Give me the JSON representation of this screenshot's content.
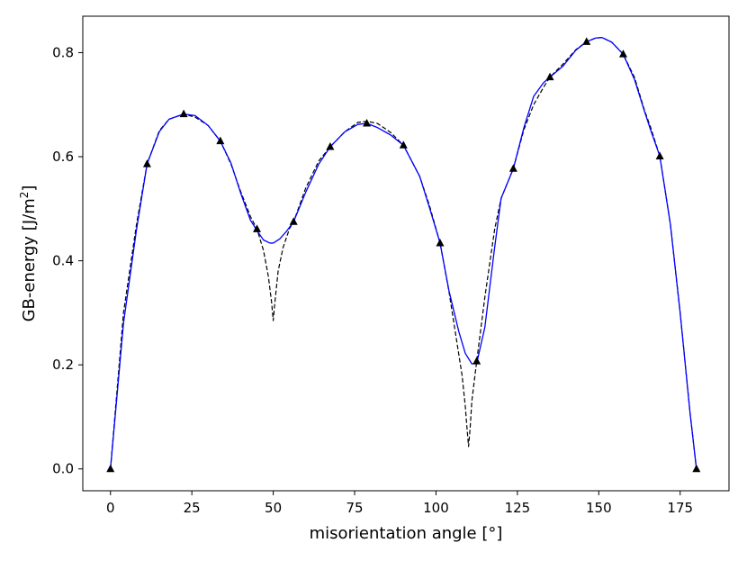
{
  "chart_data": {
    "type": "line",
    "title": "",
    "xlabel": "misorientation angle [°]",
    "ylabel_main": "GB-energy [J/m",
    "ylabel_sup": "2",
    "ylabel_end": "]",
    "xlim": [
      -8.5,
      190
    ],
    "ylim": [
      -0.042,
      0.87
    ],
    "xticks": [
      0,
      25,
      50,
      75,
      100,
      125,
      150,
      175
    ],
    "yticks": [
      0.0,
      0.2,
      0.4,
      0.6,
      0.8
    ],
    "xtick_labels": [
      "0",
      "25",
      "50",
      "75",
      "100",
      "125",
      "150",
      "175"
    ],
    "ytick_labels": [
      "0.0",
      "0.2",
      "0.4",
      "0.6",
      "0.8"
    ],
    "grid": false,
    "legend": "none",
    "series": [
      {
        "style": "markers",
        "marker": "triangle",
        "color": "#000000",
        "x": [
          0,
          11.25,
          22.5,
          33.75,
          45,
          56.25,
          67.5,
          78.75,
          90,
          101.25,
          112.5,
          123.75,
          135,
          146.25,
          157.5,
          168.75,
          180
        ],
        "y": [
          0.0,
          0.586,
          0.682,
          0.63,
          0.461,
          0.475,
          0.619,
          0.664,
          0.622,
          0.434,
          0.207,
          0.577,
          0.753,
          0.821,
          0.797,
          0.601,
          0.0
        ]
      },
      {
        "style": "solid",
        "color": "#0000ff",
        "x": [
          0,
          4,
          8,
          11.25,
          15,
          18,
          22.5,
          26,
          30,
          33.75,
          37,
          40,
          43,
          45,
          47,
          49,
          50,
          52,
          54,
          56.25,
          60,
          64,
          67.5,
          72,
          76,
          78.75,
          82,
          86,
          90,
          95,
          98,
          101.25,
          104,
          107,
          109,
          111,
          112.5,
          115,
          118,
          120,
          123.75,
          127,
          130,
          133,
          135,
          139,
          143,
          146.25,
          149,
          151,
          154,
          157.5,
          161,
          164,
          166,
          168.75,
          172,
          175,
          178,
          180
        ],
        "y": [
          0.0,
          0.28,
          0.46,
          0.586,
          0.648,
          0.672,
          0.682,
          0.679,
          0.66,
          0.63,
          0.588,
          0.53,
          0.478,
          0.458,
          0.44,
          0.434,
          0.434,
          0.442,
          0.456,
          0.475,
          0.532,
          0.586,
          0.619,
          0.648,
          0.662,
          0.664,
          0.656,
          0.642,
          0.622,
          0.562,
          0.502,
          0.434,
          0.342,
          0.264,
          0.222,
          0.202,
          0.203,
          0.272,
          0.425,
          0.52,
          0.577,
          0.656,
          0.716,
          0.742,
          0.753,
          0.774,
          0.805,
          0.821,
          0.828,
          0.829,
          0.82,
          0.797,
          0.748,
          0.688,
          0.65,
          0.601,
          0.47,
          0.3,
          0.11,
          0.0
        ]
      },
      {
        "style": "dashed",
        "color": "#000000",
        "x": [
          0,
          4,
          8,
          11.25,
          15,
          18,
          22.5,
          26,
          30,
          33.75,
          37,
          40,
          43,
          45,
          47,
          48.5,
          49.5,
          50,
          50.5,
          51.5,
          53,
          55,
          56.25,
          60,
          64,
          67.5,
          72,
          76,
          78.75,
          82,
          86,
          90,
          95,
          98,
          101.25,
          104,
          106,
          108,
          109,
          109.5,
          110,
          110.5,
          111,
          112.5,
          115,
          118,
          120,
          123.75,
          127,
          130,
          133,
          135,
          139,
          143,
          146.25,
          149,
          151,
          154,
          157.5,
          161,
          164,
          166,
          168.75,
          172,
          175,
          178,
          180
        ],
        "y": [
          0.0,
          0.3,
          0.47,
          0.586,
          0.65,
          0.672,
          0.682,
          0.676,
          0.66,
          0.63,
          0.586,
          0.533,
          0.485,
          0.461,
          0.42,
          0.37,
          0.32,
          0.285,
          0.32,
          0.38,
          0.425,
          0.462,
          0.475,
          0.54,
          0.592,
          0.619,
          0.648,
          0.666,
          0.668,
          0.664,
          0.647,
          0.622,
          0.562,
          0.506,
          0.434,
          0.34,
          0.26,
          0.18,
          0.12,
          0.08,
          0.043,
          0.08,
          0.13,
          0.207,
          0.33,
          0.46,
          0.52,
          0.577,
          0.652,
          0.7,
          0.733,
          0.753,
          0.778,
          0.806,
          0.821,
          0.828,
          0.829,
          0.82,
          0.797,
          0.752,
          0.69,
          0.655,
          0.601,
          0.47,
          0.3,
          0.11,
          0.0
        ]
      }
    ]
  }
}
